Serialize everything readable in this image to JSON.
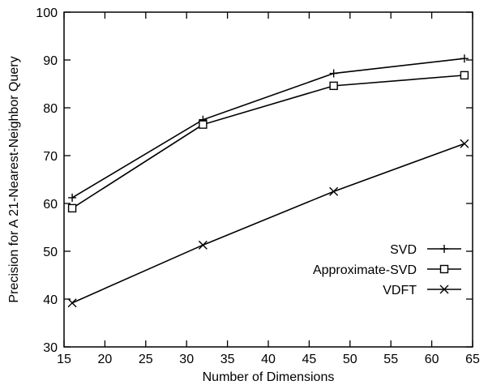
{
  "chart_data": {
    "type": "line",
    "title": "",
    "xlabel": "Number of Dimensions",
    "ylabel": "Precision for A 21-Nearest-Neighbor Query",
    "xlim": [
      15,
      65
    ],
    "ylim": [
      30,
      100
    ],
    "xticks": [
      15,
      20,
      25,
      30,
      35,
      40,
      45,
      50,
      55,
      60,
      65
    ],
    "yticks": [
      30,
      40,
      50,
      60,
      70,
      80,
      90,
      100
    ],
    "grid": false,
    "legend_position": "lower-right",
    "series": [
      {
        "name": "SVD",
        "marker": "plus",
        "x": [
          16,
          32,
          48,
          64
        ],
        "y": [
          61.2,
          77.5,
          87.2,
          90.3
        ]
      },
      {
        "name": "Approximate-SVD",
        "marker": "square",
        "x": [
          16,
          32,
          48,
          64
        ],
        "y": [
          59.0,
          76.5,
          84.6,
          86.8
        ]
      },
      {
        "name": "VDFT",
        "marker": "cross",
        "x": [
          16,
          32,
          48,
          64
        ],
        "y": [
          39.2,
          51.3,
          62.5,
          72.5
        ]
      }
    ]
  }
}
